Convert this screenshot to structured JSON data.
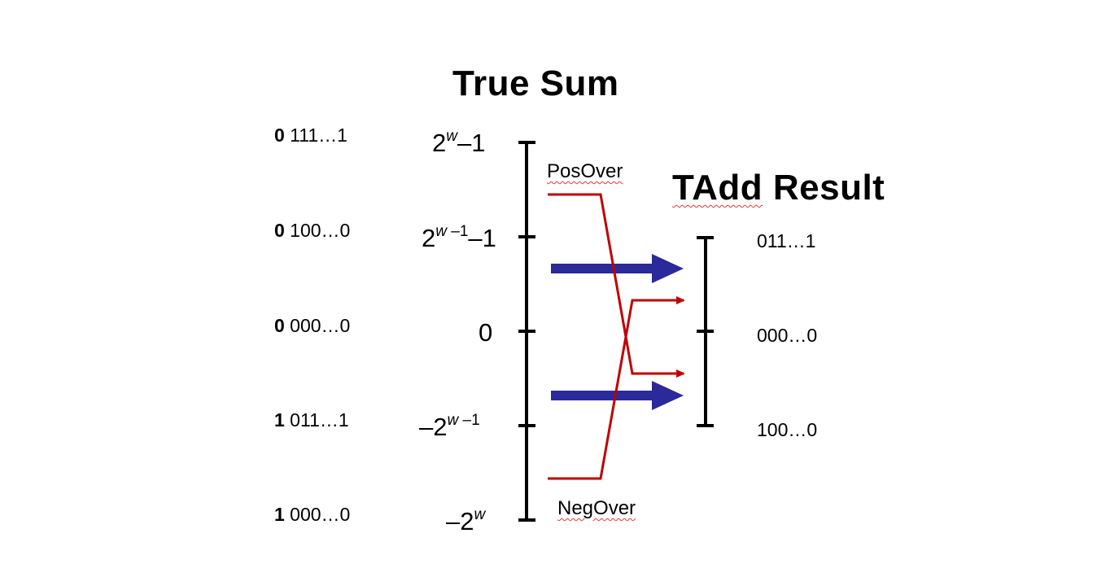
{
  "titles": {
    "true_sum": "True Sum",
    "tadd_prefix": "TAdd",
    "tadd_suffix": " Result"
  },
  "left_bits": [
    {
      "sign": "0",
      "rest": " 111…1"
    },
    {
      "sign": "0",
      "rest": " 100…0"
    },
    {
      "sign": "0",
      "rest": " 000…0"
    },
    {
      "sign": "1",
      "rest": " 011…1"
    },
    {
      "sign": "1",
      "rest": " 000…0"
    }
  ],
  "true_sum_ticks": {
    "t1": {
      "base": "2",
      "exp": "w",
      "tail": "–1"
    },
    "t2": {
      "base": "2",
      "exp": "w",
      "exp2": " –1",
      "tail": "–1"
    },
    "t3": {
      "text": "0"
    },
    "t4": {
      "base": "–2",
      "exp": "w",
      "exp2": " –1"
    },
    "t5": {
      "base": "–2",
      "exp": "w"
    }
  },
  "region_labels": {
    "pos": "PosOver",
    "neg": "NegOver"
  },
  "result_bits": [
    "011…1",
    "000…0",
    "100…0"
  ],
  "colors": {
    "axis": "#000000",
    "overflow_line": "#c00000",
    "mapping_arrow": "#2a2a9a"
  }
}
